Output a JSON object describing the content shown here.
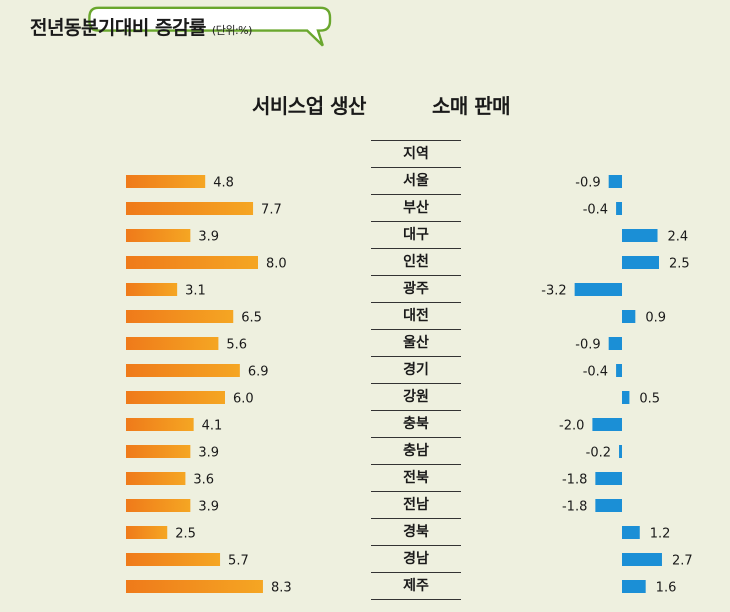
{
  "title": {
    "main": "전년동분기대비 증감률",
    "unit": "(단위:%)"
  },
  "headers": {
    "left": "서비스업 생산",
    "right": "소매 판매",
    "region": "지역"
  },
  "colors": {
    "left_bar": "#f5a623",
    "right_bar": "#1b8fd6",
    "background": "#eef0df",
    "bubble_border": "#6aa72e"
  },
  "chart_data": {
    "type": "bar",
    "orientation": "horizontal",
    "categories": [
      "서울",
      "부산",
      "대구",
      "인천",
      "광주",
      "대전",
      "울산",
      "경기",
      "강원",
      "충북",
      "충남",
      "전북",
      "전남",
      "경북",
      "경남",
      "제주"
    ],
    "series": [
      {
        "name": "서비스업 생산",
        "values": [
          4.8,
          7.7,
          3.9,
          8.0,
          3.1,
          6.5,
          5.6,
          6.9,
          6.0,
          4.1,
          3.9,
          3.6,
          3.9,
          2.5,
          5.7,
          8.3
        ]
      },
      {
        "name": "소매 판매",
        "values": [
          -0.9,
          -0.4,
          2.4,
          2.5,
          -3.2,
          0.9,
          -0.9,
          -0.4,
          0.5,
          -2.0,
          -0.2,
          -1.8,
          -1.8,
          1.2,
          2.7,
          1.6
        ]
      }
    ]
  }
}
